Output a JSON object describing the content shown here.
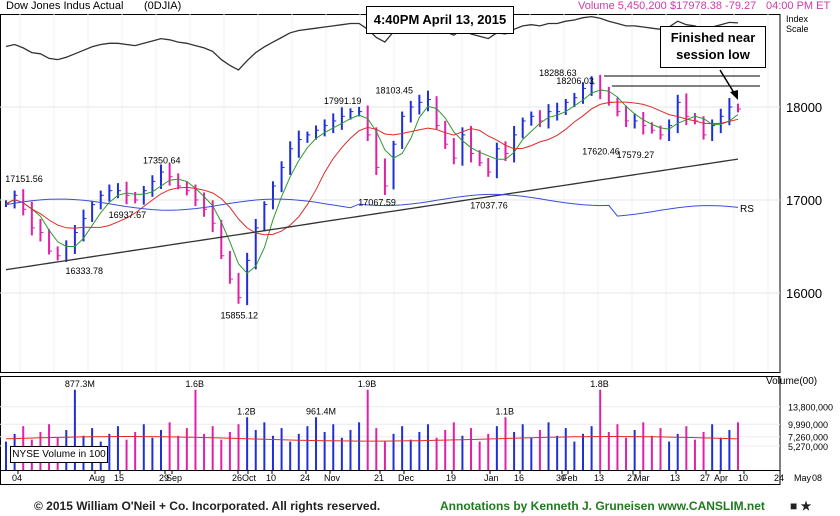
{
  "header": {
    "title": "Dow Jones Indus Actual",
    "symbol": "(0DJIA)",
    "volume": "Volume 5,450,200",
    "price_info": "$17978.38 -79.27",
    "time": "04:00 PM ET",
    "index_scale_label": "Index Scale"
  },
  "timestamp_box": "4:40PM April 13, 2015",
  "annotation": {
    "text_line1": "Finished near",
    "text_line2": "session low"
  },
  "volume_panel": {
    "label": "NYSE Volume in 100",
    "axis_title": "Volume(00)"
  },
  "footer": {
    "copyright": "© 2015  William O'Neil + Co. Incorporated. All rights reserved.",
    "annotations": "Annotations by Kenneth J. Gruneisen www.CANSLIM.net"
  },
  "colors": {
    "up": "#1f2fd8",
    "down": "#e020a8",
    "ma_short": "#2e9a2e",
    "ma_mid": "#e02a2a",
    "ma_long": "#333333",
    "rs": "#3a4ed8",
    "index_line": "#333333",
    "header_pink": "#d03aa8",
    "footer_green": "#1f7a1f"
  },
  "chart_data": {
    "type": "line",
    "title": "Dow Jones Indus Actual",
    "price_axis": {
      "ticks": [
        16000,
        17000,
        18000
      ],
      "tick_labels": [
        "16000",
        "17000",
        "18000"
      ],
      "ylim": [
        15150,
        19000
      ]
    },
    "volume_axis": {
      "tick_labels": [
        "13,800,000",
        "9,990,000",
        "7,260,000",
        "5,270,000"
      ],
      "ylim": [
        0,
        20500000
      ]
    },
    "x_tick_labels": [
      "04",
      "Aug",
      "15",
      "29",
      "Sep",
      "26",
      "Oct",
      "10",
      "24",
      "Nov",
      "21",
      "Dec",
      "19",
      "Jan",
      "16",
      "30",
      "Feb",
      "13",
      "27",
      "Mar",
      "13",
      "27",
      "Apr",
      "10",
      "24",
      "May",
      "08"
    ],
    "price_annotations": [
      {
        "label": "17151.56",
        "value": 17151.56
      },
      {
        "label": "16333.78",
        "value": 16333.78
      },
      {
        "label": "16937.67",
        "value": 16937.67
      },
      {
        "label": "17350.64",
        "value": 17350.64
      },
      {
        "label": "15855.12",
        "value": 15855.12
      },
      {
        "label": "17991.19",
        "value": 17991.19
      },
      {
        "label": "18103.45",
        "value": 18103.45
      },
      {
        "label": "17067.59",
        "value": 17067.59
      },
      {
        "label": "17037.76",
        "value": 17037.76
      },
      {
        "label": "18288.63",
        "value": 18288.63
      },
      {
        "label": "18206.03",
        "value": 18206.03
      },
      {
        "label": "17620.46",
        "value": 17620.46
      },
      {
        "label": "17579.27",
        "value": 17579.27
      }
    ],
    "volume_annotations": [
      "877.3M",
      "1.6B",
      "1.2B",
      "961.4M",
      "1.9B",
      "1.1B",
      "1.8B"
    ],
    "series": [
      {
        "name": "RS",
        "values": []
      }
    ],
    "price_path": [
      16960,
      17050,
      16900,
      16700,
      16650,
      16450,
      16400,
      16500,
      16650,
      16800,
      16950,
      17050,
      17100,
      17100,
      17050,
      17000,
      17100,
      17200,
      17300,
      17250,
      17150,
      17100,
      17000,
      16900,
      16750,
      16400,
      16150,
      15950,
      16350,
      16700,
      16950,
      17150,
      17350,
      17550,
      17650,
      17700,
      17750,
      17800,
      17850,
      17900,
      17950,
      17950,
      17700,
      17350,
      17150,
      17600,
      17900,
      18000,
      18050,
      18080,
      17800,
      17600,
      17450,
      17700,
      17500,
      17400,
      17300,
      17550,
      17500,
      17700,
      17850,
      17900,
      17850,
      17950,
      17950,
      18050,
      18100,
      18200,
      18250,
      18180,
      18050,
      17950,
      17850,
      17850,
      17800,
      17750,
      17700,
      17800,
      18050,
      17900,
      17850,
      17700,
      17800,
      17900,
      18000,
      17978
    ],
    "notes": "Bars generated from price_path by the drawing script"
  }
}
